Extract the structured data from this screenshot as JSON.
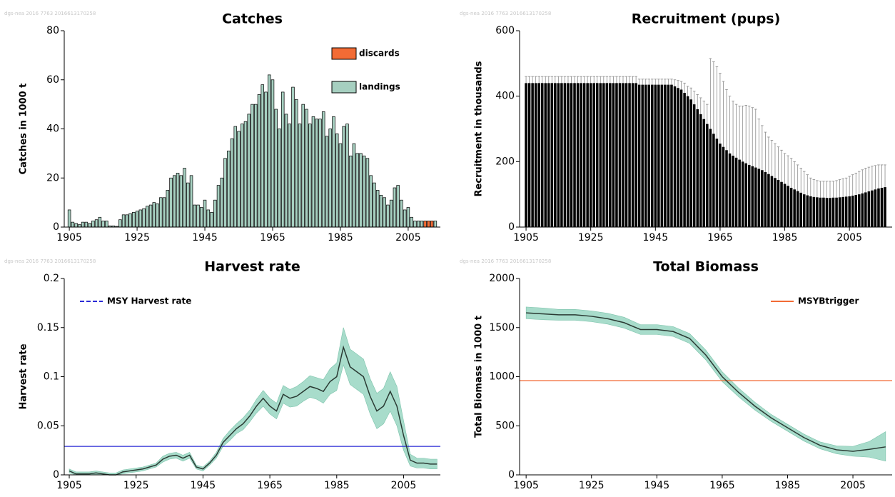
{
  "chart_data": [
    {
      "type": "bar",
      "title": "Catches",
      "watermark": "dgs-nea  2016  7763  2016613170258",
      "ylabel": "Catches in 1000 t",
      "xlim": [
        1903.5,
        2014.5
      ],
      "xticks": [
        1905,
        1925,
        1945,
        1965,
        1985,
        2005
      ],
      "ylim": [
        0,
        80
      ],
      "yticks": [
        0,
        20,
        40,
        60,
        80
      ],
      "legend": "upper right",
      "x": [
        1905,
        1906,
        1907,
        1908,
        1909,
        1910,
        1911,
        1912,
        1913,
        1914,
        1915,
        1916,
        1917,
        1918,
        1919,
        1920,
        1921,
        1922,
        1923,
        1924,
        1925,
        1926,
        1927,
        1928,
        1929,
        1930,
        1931,
        1932,
        1933,
        1934,
        1935,
        1936,
        1937,
        1938,
        1939,
        1940,
        1941,
        1942,
        1943,
        1944,
        1945,
        1946,
        1947,
        1948,
        1949,
        1950,
        1951,
        1952,
        1953,
        1954,
        1955,
        1956,
        1957,
        1958,
        1959,
        1960,
        1961,
        1962,
        1963,
        1964,
        1965,
        1966,
        1967,
        1968,
        1969,
        1970,
        1971,
        1972,
        1973,
        1974,
        1975,
        1976,
        1977,
        1978,
        1979,
        1980,
        1981,
        1982,
        1983,
        1984,
        1985,
        1986,
        1987,
        1988,
        1989,
        1990,
        1991,
        1992,
        1993,
        1994,
        1995,
        1996,
        1997,
        1998,
        1999,
        2000,
        2001,
        2002,
        2003,
        2004,
        2005,
        2006,
        2007,
        2008,
        2009,
        2010,
        2011,
        2012,
        2013
      ],
      "series": [
        {
          "name": "landings",
          "color": "#a6cfc0",
          "values": [
            7,
            2,
            1.5,
            1,
            2,
            2,
            1.5,
            2.5,
            3,
            4,
            2.5,
            2.5,
            0.5,
            0.5,
            0.3,
            3,
            5,
            5,
            5.5,
            6,
            6.5,
            7,
            7.5,
            8.5,
            9,
            10,
            9.5,
            12,
            12,
            15,
            20,
            21,
            22,
            21,
            24,
            18,
            21,
            9,
            9,
            8,
            11,
            7,
            6,
            11,
            17,
            20,
            28,
            31,
            36,
            41,
            39,
            42,
            43,
            46,
            50,
            50,
            54,
            58,
            55,
            62,
            60,
            48,
            40,
            55,
            46,
            42,
            57,
            52,
            42,
            50,
            48,
            42,
            45,
            44,
            44,
            47,
            37,
            40,
            45,
            38,
            34,
            41,
            42,
            29,
            34,
            30,
            30,
            29,
            28,
            21,
            18,
            15,
            13,
            12,
            9,
            11,
            16,
            17,
            11,
            7,
            8,
            4,
            2.5,
            2.5,
            2.5,
            0,
            0,
            0,
            2.5
          ]
        },
        {
          "name": "discards",
          "color": "#f26b35",
          "values": [
            0,
            0,
            0,
            0,
            0,
            0,
            0,
            0,
            0,
            0,
            0,
            0,
            0,
            0,
            0,
            0,
            0,
            0,
            0,
            0,
            0,
            0,
            0,
            0,
            0,
            0,
            0,
            0,
            0,
            0,
            0,
            0,
            0,
            0,
            0,
            0,
            0,
            0,
            0,
            0,
            0,
            0,
            0,
            0,
            0,
            0,
            0,
            0,
            0,
            0,
            0,
            0,
            0,
            0,
            0,
            0,
            0,
            0,
            0,
            0,
            0,
            0,
            0,
            0,
            0,
            0,
            0,
            0,
            0,
            0,
            0,
            0,
            0,
            0,
            0,
            0,
            0,
            0,
            0,
            0,
            0,
            0,
            0,
            0,
            0,
            0,
            0,
            0,
            0,
            0,
            0,
            0,
            0,
            0,
            0,
            0,
            0,
            0,
            0,
            0,
            0,
            0,
            0,
            0,
            0,
            2.5,
            2.5,
            2.5,
            0
          ]
        }
      ]
    },
    {
      "type": "bar-error",
      "title": "Recruitment (pups)",
      "watermark": "dgs-nea  2016  7763  2016613170258",
      "ylabel": "Recruitment in thousands",
      "xlim": [
        1903,
        2018.2
      ],
      "xticks": [
        1905,
        1925,
        1945,
        1965,
        1985,
        2005
      ],
      "ylim": [
        0,
        600
      ],
      "yticks": [
        0,
        200,
        400,
        600
      ],
      "color": "#000000",
      "error_color": "#8a8a8a",
      "x": [
        1905,
        1906,
        1907,
        1908,
        1909,
        1910,
        1911,
        1912,
        1913,
        1914,
        1915,
        1916,
        1917,
        1918,
        1919,
        1920,
        1921,
        1922,
        1923,
        1924,
        1925,
        1926,
        1927,
        1928,
        1929,
        1930,
        1931,
        1932,
        1933,
        1934,
        1935,
        1936,
        1937,
        1938,
        1939,
        1940,
        1941,
        1942,
        1943,
        1944,
        1945,
        1946,
        1947,
        1948,
        1949,
        1950,
        1951,
        1952,
        1953,
        1954,
        1955,
        1956,
        1957,
        1958,
        1959,
        1960,
        1961,
        1962,
        1963,
        1964,
        1965,
        1966,
        1967,
        1968,
        1969,
        1970,
        1971,
        1972,
        1973,
        1974,
        1975,
        1976,
        1977,
        1978,
        1979,
        1980,
        1981,
        1982,
        1983,
        1984,
        1985,
        1986,
        1987,
        1988,
        1989,
        1990,
        1991,
        1992,
        1993,
        1994,
        1995,
        1996,
        1997,
        1998,
        1999,
        2000,
        2001,
        2002,
        2003,
        2004,
        2005,
        2006,
        2007,
        2008,
        2009,
        2010,
        2011,
        2012,
        2013,
        2014,
        2015,
        2016
      ],
      "values": [
        440,
        440,
        440,
        440,
        440,
        440,
        440,
        440,
        440,
        440,
        440,
        440,
        440,
        440,
        440,
        440,
        440,
        440,
        440,
        440,
        440,
        440,
        440,
        440,
        440,
        440,
        440,
        440,
        440,
        440,
        440,
        440,
        440,
        440,
        440,
        435,
        435,
        435,
        435,
        435,
        435,
        435,
        435,
        435,
        435,
        435,
        430,
        425,
        420,
        410,
        400,
        390,
        375,
        360,
        345,
        330,
        315,
        300,
        285,
        270,
        255,
        245,
        235,
        225,
        218,
        212,
        206,
        200,
        195,
        190,
        186,
        182,
        178,
        174,
        168,
        162,
        156,
        150,
        144,
        138,
        132,
        126,
        120,
        115,
        110,
        105,
        100,
        97,
        94,
        92,
        91,
        90,
        90,
        89,
        89,
        90,
        90,
        91,
        92,
        93,
        94,
        96,
        98,
        100,
        103,
        106,
        109,
        112,
        115,
        118,
        120,
        122
      ],
      "upper": [
        460,
        460,
        460,
        460,
        460,
        460,
        460,
        460,
        460,
        460,
        460,
        460,
        460,
        460,
        460,
        460,
        460,
        460,
        460,
        460,
        460,
        460,
        460,
        460,
        460,
        460,
        460,
        460,
        460,
        460,
        460,
        460,
        460,
        460,
        460,
        452,
        452,
        452,
        452,
        452,
        452,
        452,
        452,
        452,
        452,
        452,
        450,
        448,
        445,
        440,
        430,
        425,
        415,
        405,
        395,
        385,
        375,
        515,
        505,
        490,
        470,
        445,
        420,
        400,
        385,
        375,
        370,
        370,
        372,
        370,
        365,
        360,
        330,
        310,
        290,
        275,
        265,
        255,
        245,
        235,
        225,
        218,
        210,
        200,
        190,
        180,
        170,
        160,
        150,
        145,
        142,
        140,
        140,
        140,
        140,
        140,
        142,
        145,
        148,
        150,
        155,
        160,
        165,
        170,
        175,
        180,
        183,
        186,
        188,
        190,
        190,
        190
      ]
    },
    {
      "type": "line-band",
      "title": "Harvest rate",
      "watermark": "dgs-nea  2016  7763  2016613170258",
      "ylabel": "Harvest rate",
      "xlim": [
        1903.5,
        2016
      ],
      "xticks": [
        1905,
        1925,
        1945,
        1965,
        1985,
        2005
      ],
      "ylim": [
        0,
        0.2
      ],
      "yticks": [
        0,
        0.05,
        0.1,
        0.15,
        0.2
      ],
      "legend": "upper left",
      "color": "#2a3a33",
      "band_color": "#a8dccb",
      "x": [
        1905,
        1907,
        1909,
        1911,
        1913,
        1915,
        1917,
        1919,
        1921,
        1923,
        1925,
        1927,
        1929,
        1931,
        1933,
        1935,
        1937,
        1939,
        1941,
        1943,
        1945,
        1947,
        1949,
        1951,
        1953,
        1955,
        1957,
        1959,
        1961,
        1963,
        1965,
        1967,
        1969,
        1971,
        1973,
        1975,
        1977,
        1979,
        1981,
        1983,
        1985,
        1987,
        1989,
        1991,
        1993,
        1995,
        1997,
        1999,
        2001,
        2003,
        2005,
        2007,
        2009,
        2011,
        2013,
        2015
      ],
      "values": [
        0.004,
        0.001,
        0.001,
        0.001,
        0.002,
        0.001,
        0,
        0,
        0.003,
        0.004,
        0.005,
        0.006,
        0.008,
        0.01,
        0.016,
        0.019,
        0.02,
        0.017,
        0.02,
        0.008,
        0.006,
        0.012,
        0.02,
        0.033,
        0.04,
        0.047,
        0.052,
        0.06,
        0.07,
        0.078,
        0.07,
        0.065,
        0.082,
        0.078,
        0.08,
        0.085,
        0.09,
        0.088,
        0.085,
        0.095,
        0.1,
        0.13,
        0.11,
        0.105,
        0.1,
        0.08,
        0.065,
        0.07,
        0.085,
        0.07,
        0.04,
        0.015,
        0.012,
        0.012,
        0.011,
        0.011
      ],
      "lower": [
        0.002,
        0,
        0,
        0,
        0,
        0,
        0,
        0,
        0.001,
        0.002,
        0.003,
        0.004,
        0.006,
        0.008,
        0.013,
        0.016,
        0.017,
        0.014,
        0.017,
        0.006,
        0.004,
        0.01,
        0.017,
        0.029,
        0.035,
        0.042,
        0.046,
        0.054,
        0.063,
        0.07,
        0.062,
        0.057,
        0.073,
        0.069,
        0.07,
        0.075,
        0.079,
        0.077,
        0.073,
        0.082,
        0.086,
        0.112,
        0.092,
        0.087,
        0.082,
        0.062,
        0.047,
        0.052,
        0.065,
        0.05,
        0.025,
        0.009,
        0.007,
        0.007,
        0.006,
        0.006
      ],
      "upper": [
        0.006,
        0.003,
        0.003,
        0.003,
        0.004,
        0.003,
        0.002,
        0.002,
        0.005,
        0.006,
        0.007,
        0.008,
        0.01,
        0.012,
        0.019,
        0.022,
        0.023,
        0.02,
        0.023,
        0.01,
        0.008,
        0.014,
        0.023,
        0.037,
        0.045,
        0.052,
        0.058,
        0.066,
        0.077,
        0.086,
        0.078,
        0.073,
        0.091,
        0.087,
        0.09,
        0.095,
        0.101,
        0.099,
        0.097,
        0.108,
        0.114,
        0.15,
        0.128,
        0.123,
        0.118,
        0.098,
        0.083,
        0.088,
        0.105,
        0.09,
        0.055,
        0.021,
        0.017,
        0.017,
        0.016,
        0.016
      ],
      "reference": {
        "name": "MSY Harvest rate",
        "value": 0.029,
        "color": "#2b2bd6",
        "dashed": true
      }
    },
    {
      "type": "line-band",
      "title": "Total Biomass",
      "watermark": "dgs-nea  2016  7763  2016613170258",
      "ylabel": "Total Biomass in 1000 t",
      "xlim": [
        1903,
        2017
      ],
      "xticks": [
        1905,
        1925,
        1945,
        1965,
        1985,
        2005
      ],
      "ylim": [
        0,
        2000
      ],
      "yticks": [
        0,
        500,
        1000,
        1500,
        2000
      ],
      "legend": "upper right",
      "color": "#2a3a33",
      "band_color": "#a8dccb",
      "x": [
        1905,
        1910,
        1915,
        1920,
        1925,
        1930,
        1935,
        1940,
        1945,
        1950,
        1955,
        1960,
        1965,
        1970,
        1975,
        1980,
        1985,
        1990,
        1995,
        2000,
        2005,
        2010,
        2015
      ],
      "values": [
        1650,
        1640,
        1630,
        1630,
        1615,
        1590,
        1550,
        1480,
        1480,
        1460,
        1390,
        1220,
        1000,
        840,
        700,
        580,
        480,
        380,
        300,
        255,
        240,
        260,
        285
      ],
      "lower": [
        1590,
        1580,
        1575,
        1575,
        1560,
        1535,
        1495,
        1430,
        1430,
        1410,
        1340,
        1170,
        950,
        795,
        660,
        545,
        445,
        345,
        265,
        215,
        190,
        180,
        140
      ],
      "upper": [
        1710,
        1700,
        1685,
        1685,
        1670,
        1645,
        1605,
        1530,
        1530,
        1510,
        1440,
        1270,
        1050,
        885,
        740,
        615,
        515,
        415,
        335,
        295,
        290,
        340,
        440
      ],
      "reference": {
        "name": "MSYBtrigger",
        "value": 960,
        "color": "#f26b35",
        "dashed": false
      }
    }
  ]
}
